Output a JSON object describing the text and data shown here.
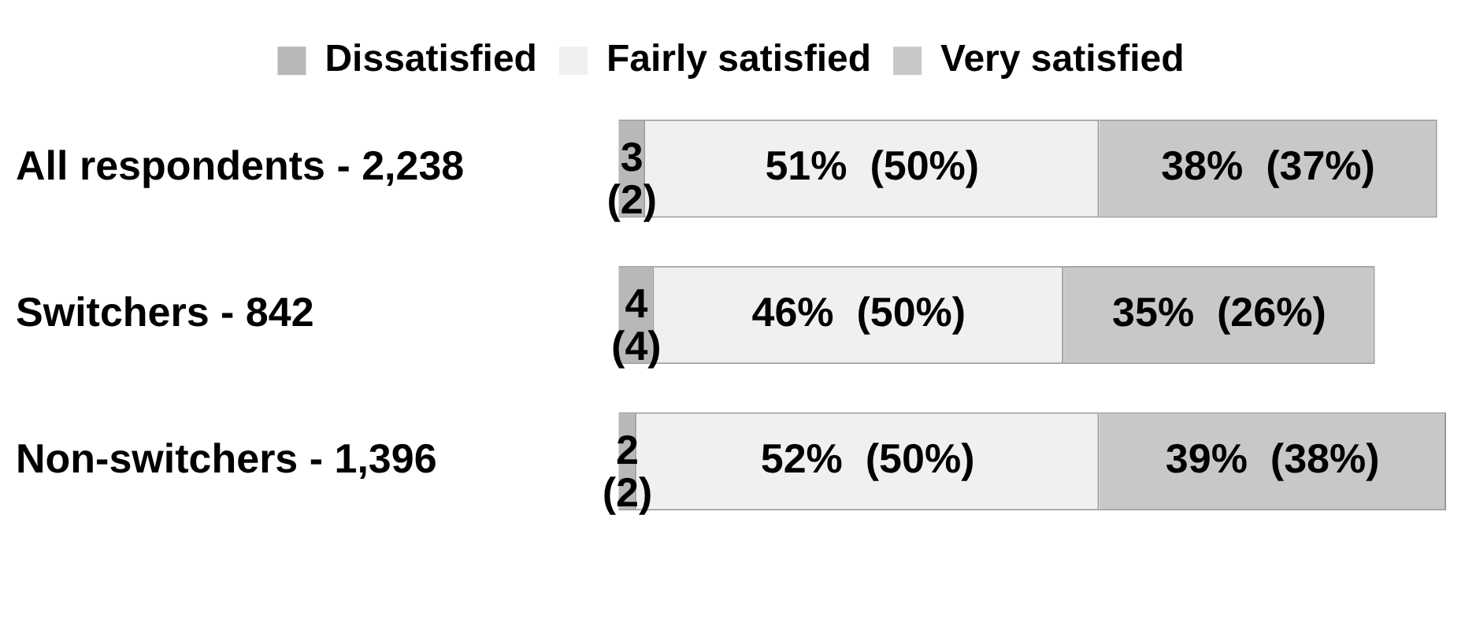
{
  "chart_data": {
    "type": "bar",
    "orientation": "horizontal",
    "stacked": true,
    "legend": "top",
    "categories": [
      "All respondents - 2,238",
      "Switchers - 842",
      "Non-switchers - 1,396"
    ],
    "series": [
      {
        "name": "Dissatisfied",
        "color": "#b8b8b8",
        "values": [
          3,
          4,
          2
        ],
        "value_labels": [
          "3 (2)",
          "4 (4)",
          "2 (2)"
        ]
      },
      {
        "name": "Fairly satisfied",
        "color": "#f0f0f0",
        "values": [
          51,
          46,
          52
        ],
        "value_labels": [
          "51%  (50%)",
          "46%  (50%)",
          "52%  (50%)"
        ]
      },
      {
        "name": "Very satisfied",
        "color": "#c8c8c8",
        "values": [
          38,
          35,
          39
        ],
        "value_labels": [
          "38%  (37%)",
          "35%  (26%)",
          "39%  (38%)"
        ]
      }
    ]
  }
}
